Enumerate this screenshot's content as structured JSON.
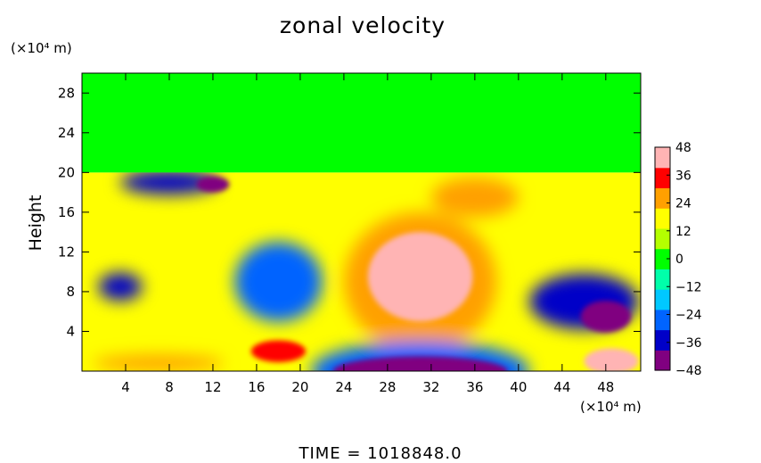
{
  "chart_data": {
    "type": "heatmap",
    "title": "zonal velocity",
    "ylabel": "Height",
    "xlabel": "",
    "x_unit": "(×10⁴ m)",
    "y_unit": "(×10⁴ m)",
    "x_ticks": [
      "4",
      "8",
      "12",
      "16",
      "20",
      "24",
      "28",
      "32",
      "36",
      "40",
      "44",
      "48"
    ],
    "y_ticks": [
      "4",
      "8",
      "12",
      "16",
      "20",
      "24",
      "28"
    ],
    "xlim": [
      0,
      51.2
    ],
    "ylim": [
      0,
      30
    ],
    "colorbar": {
      "ticks": [
        "48",
        "36",
        "24",
        "12",
        "0",
        "-12",
        "-24",
        "-36",
        "-48"
      ],
      "range": [
        -48,
        48
      ]
    },
    "features": [
      {
        "x": 31,
        "y": 9.5,
        "value": 48,
        "rx": 4.8,
        "ry": 4.5
      },
      {
        "x": 31,
        "y": 9,
        "value": 32,
        "rx": 7,
        "ry": 7
      },
      {
        "x": 31,
        "y": 0,
        "value": -48,
        "rx": 8,
        "ry": 1.5
      },
      {
        "x": 31,
        "y": 0,
        "value": -30,
        "rx": 10,
        "ry": 3
      },
      {
        "x": 48,
        "y": 5.5,
        "value": -48,
        "rx": 2.3,
        "ry": 1.6
      },
      {
        "x": 46,
        "y": 7,
        "value": -34,
        "rx": 5,
        "ry": 2.8
      },
      {
        "x": 8,
        "y": 19,
        "value": -38,
        "rx": 4.5,
        "ry": 1.2
      },
      {
        "x": 12,
        "y": 18.8,
        "value": -44,
        "rx": 1.5,
        "ry": 0.8
      },
      {
        "x": 3.5,
        "y": 8.5,
        "value": -40,
        "rx": 2,
        "ry": 1.4
      },
      {
        "x": 18,
        "y": 9,
        "value": -25,
        "rx": 4,
        "ry": 4
      },
      {
        "x": 18,
        "y": 2,
        "value": 42,
        "rx": 2.5,
        "ry": 1.1
      },
      {
        "x": 48.5,
        "y": 1,
        "value": 44,
        "rx": 2.5,
        "ry": 1.3
      },
      {
        "x": 7,
        "y": 0.8,
        "value": 30,
        "rx": 6,
        "ry": 0.8
      },
      {
        "x": 36,
        "y": 17.5,
        "value": 28,
        "rx": 4,
        "ry": 2
      }
    ],
    "upper_layer": {
      "y_from": 20,
      "y_to": 30,
      "value": 0
    },
    "grid": false
  },
  "footer": {
    "time_text": "TIME  =  1018848.0"
  },
  "colors": {
    "colormap": [
      "#800080",
      "#0000c8",
      "#0064ff",
      "#00c8ff",
      "#00ffaa",
      "#00ff00",
      "#b4ff00",
      "#ffff00",
      "#ffa000",
      "#ff0000",
      "#ffb4b4"
    ]
  }
}
